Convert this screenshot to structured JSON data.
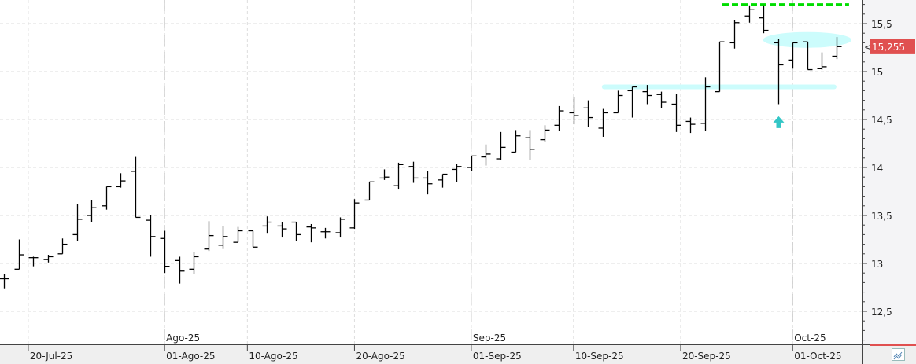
{
  "chart_data": {
    "type": "ohlc",
    "title": "",
    "ylim": [
      12.16,
      15.75
    ],
    "grid": true,
    "y_axis_position": "right",
    "y_ticks": [
      12.5,
      13,
      13.5,
      14,
      14.5,
      15,
      15.5
    ],
    "y_tick_labels": [
      "12,5",
      "13",
      "13,5",
      "14",
      "14,5",
      "15",
      "15,5"
    ],
    "x_ticks": [
      {
        "date": "2025-07-20",
        "label": "20-Jul-25"
      },
      {
        "date": "2025-08-01",
        "label": "01-Ago-25"
      },
      {
        "date": "2025-08-10",
        "label": "10-Ago-25"
      },
      {
        "date": "2025-08-20",
        "label": "20-Ago-25"
      },
      {
        "date": "2025-09-01",
        "label": "01-Sep-25"
      },
      {
        "date": "2025-09-10",
        "label": "10-Sep-25"
      },
      {
        "date": "2025-09-20",
        "label": "20-Sep-25"
      },
      {
        "date": "2025-10-01",
        "label": "01-Oct-25"
      }
    ],
    "month_markers": [
      {
        "date": "2025-08-01",
        "label": "Ago-25"
      },
      {
        "date": "2025-09-01",
        "label": "Sep-25"
      },
      {
        "date": "2025-10-01",
        "label": "Oct-25"
      }
    ],
    "dates": [
      "2025-07-17",
      "2025-07-18",
      "2025-07-21",
      "2025-07-22",
      "2025-07-23",
      "2025-07-24",
      "2025-07-25",
      "2025-07-28",
      "2025-07-29",
      "2025-07-30",
      "2025-07-31",
      "2025-08-01",
      "2025-08-04",
      "2025-08-05",
      "2025-08-06",
      "2025-08-07",
      "2025-08-08",
      "2025-08-11",
      "2025-08-12",
      "2025-08-13",
      "2025-08-14",
      "2025-08-15",
      "2025-08-18",
      "2025-08-19",
      "2025-08-20",
      "2025-08-21",
      "2025-08-22",
      "2025-08-25",
      "2025-08-26",
      "2025-08-27",
      "2025-08-28",
      "2025-08-29",
      "2025-09-01",
      "2025-09-02",
      "2025-09-03",
      "2025-09-04",
      "2025-09-05",
      "2025-09-08",
      "2025-09-09",
      "2025-09-10",
      "2025-09-11",
      "2025-09-12",
      "2025-09-15",
      "2025-09-16",
      "2025-09-17",
      "2025-09-18",
      "2025-09-19",
      "2025-09-22",
      "2025-09-23",
      "2025-09-24",
      "2025-09-25",
      "2025-09-26",
      "2025-09-29",
      "2025-09-30",
      "2025-10-01",
      "2025-10-02",
      "2025-10-03",
      "2025-10-06"
    ],
    "open": [
      12.84,
      12.94,
      13.06,
      13.04,
      13.1,
      13.3,
      13.5,
      13.6,
      13.8,
      13.96,
      13.45,
      13.26,
      13.03,
      12.94,
      13.15,
      13.19,
      13.22,
      13.34,
      13.39,
      13.39,
      13.43,
      13.38,
      13.33,
      13.32,
      13.37,
      13.66,
      13.89,
      13.81,
      14.01,
      13.89,
      13.87,
      13.98,
      14.0,
      14.11,
      14.09,
      14.16,
      14.31,
      14.29,
      14.44,
      14.57,
      14.62,
      14.41,
      14.57,
      14.8,
      14.79,
      14.76,
      14.66,
      14.48,
      14.46,
      14.79,
      15.3,
      15.58,
      15.56,
      15.3,
      15.12,
      15.31,
      15.03,
      15.16
    ],
    "high": [
      12.89,
      13.25,
      13.07,
      13.09,
      13.26,
      13.62,
      13.66,
      13.8,
      13.94,
      14.11,
      13.5,
      13.34,
      13.07,
      13.12,
      13.44,
      13.39,
      13.38,
      13.34,
      13.49,
      13.43,
      13.43,
      13.41,
      13.37,
      13.48,
      13.67,
      13.85,
      13.98,
      14.05,
      14.06,
      13.96,
      13.93,
      14.04,
      14.12,
      14.24,
      14.37,
      14.39,
      14.39,
      14.44,
      14.64,
      14.73,
      14.7,
      14.61,
      14.8,
      14.84,
      14.86,
      14.79,
      14.77,
      14.52,
      14.94,
      15.31,
      15.54,
      15.69,
      15.69,
      15.34,
      15.3,
      15.31,
      15.2,
      15.36
    ],
    "low": [
      12.74,
      12.94,
      12.97,
      13.01,
      13.1,
      13.23,
      13.43,
      13.56,
      13.79,
      13.48,
      13.07,
      12.9,
      12.79,
      12.89,
      13.13,
      13.15,
      13.22,
      13.17,
      13.31,
      13.27,
      13.23,
      13.22,
      13.26,
      13.27,
      13.36,
      13.66,
      13.87,
      13.77,
      13.84,
      13.72,
      13.79,
      13.85,
      13.96,
      14.02,
      14.08,
      14.16,
      14.08,
      14.27,
      14.38,
      14.45,
      14.42,
      14.32,
      14.57,
      14.52,
      14.66,
      14.62,
      14.37,
      14.36,
      14.38,
      14.79,
      15.24,
      15.51,
      15.4,
      14.66,
      15.03,
      15.02,
      15.02,
      15.13
    ],
    "close": [
      12.84,
      13.09,
      13.06,
      13.07,
      13.2,
      13.46,
      13.58,
      13.8,
      13.86,
      13.48,
      13.28,
      12.97,
      12.92,
      13.07,
      13.29,
      13.28,
      13.34,
      13.17,
      13.43,
      13.36,
      13.3,
      13.37,
      13.33,
      13.46,
      13.63,
      13.85,
      13.9,
      14.03,
      13.89,
      13.83,
      13.93,
      14.01,
      14.12,
      14.14,
      14.21,
      14.33,
      14.19,
      14.39,
      14.59,
      14.54,
      14.52,
      14.57,
      14.75,
      14.84,
      14.75,
      14.68,
      14.44,
      14.45,
      14.84,
      15.31,
      15.51,
      15.65,
      15.43,
      15.07,
      15.3,
      15.02,
      15.05,
      15.26
    ],
    "last_price_label": "15,255",
    "last_price": 15.255,
    "annotations": {
      "resistance_line": {
        "price": 15.7,
        "from": "2025-09-25",
        "to": "2025-10-06",
        "color": "#00dd00"
      },
      "support_band": {
        "price": 14.84,
        "from": "2025-09-10",
        "to": "2025-10-06",
        "color": "#ccfcfc"
      },
      "ellipse": {
        "price": 15.33,
        "from": "2025-09-30",
        "to": "2025-10-06",
        "color": "#ccfcfc"
      },
      "up_arrow": {
        "date": "2025-09-30",
        "price": 14.46,
        "color": "#33c6c6"
      }
    },
    "colors": {
      "bars": "#000000",
      "last_price_bg": "#e05050",
      "grid": "#dddddd"
    }
  },
  "toolbar": {
    "corner_icon": "chart-wave-icon"
  }
}
